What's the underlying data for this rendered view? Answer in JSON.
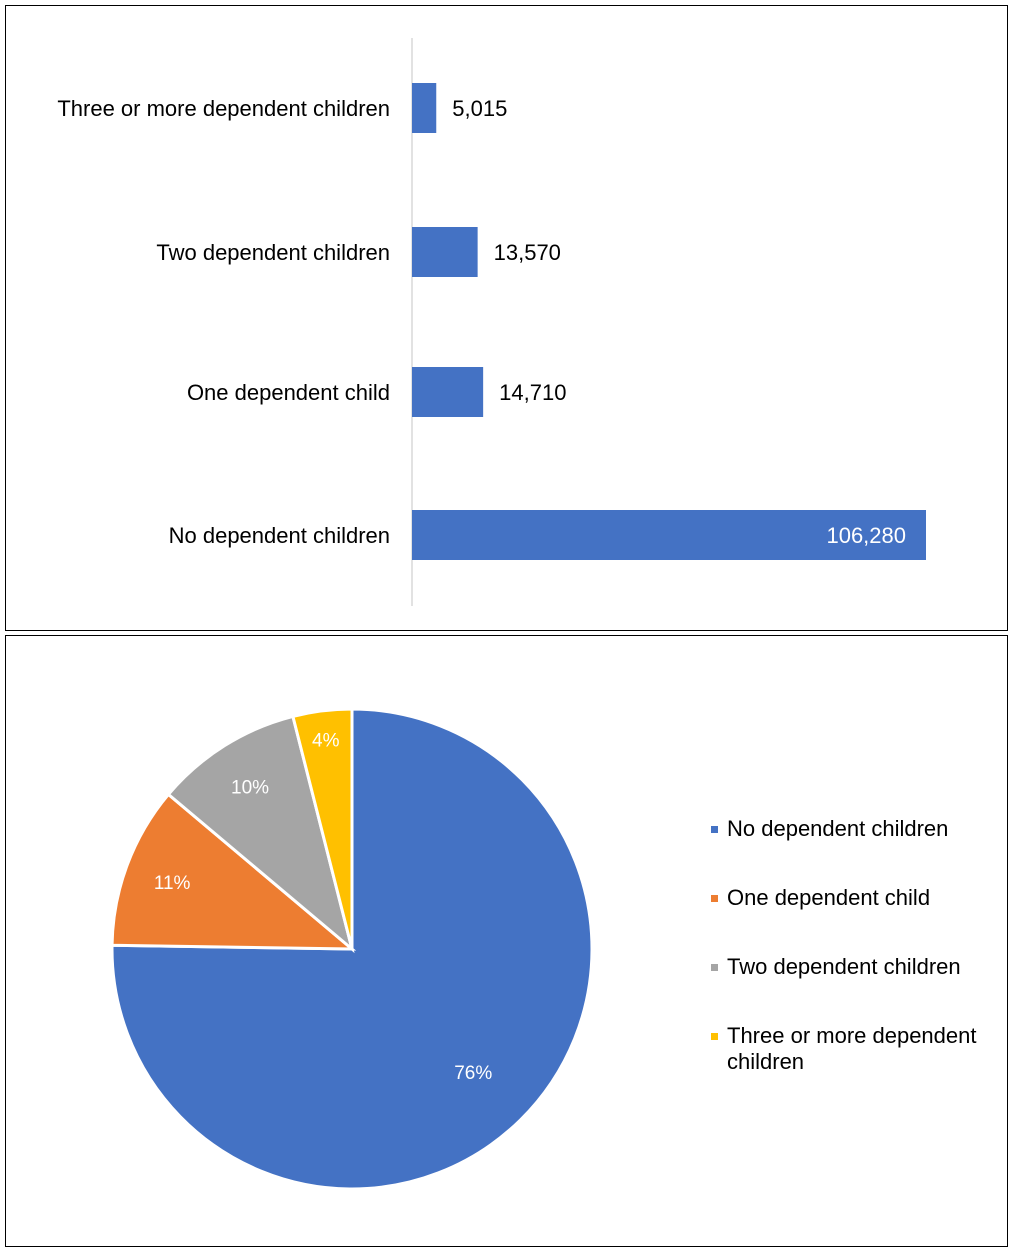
{
  "colors": {
    "bar": "#4472C4",
    "axis": "#D9D9D9",
    "slice_border": "#FFFFFF"
  },
  "chart_data": [
    {
      "type": "bar",
      "orientation": "horizontal",
      "categories": [
        "No dependent children",
        "One dependent child",
        "Two dependent children",
        "Three or more dependent children"
      ],
      "values": [
        106280,
        14710,
        13570,
        5015
      ],
      "data_labels": [
        "106,280",
        "14,710",
        "13,570",
        "5,015"
      ],
      "title": "",
      "xlabel": "",
      "ylabel": "",
      "xlim": [
        0,
        106280
      ],
      "grid": false,
      "legend": "none"
    },
    {
      "type": "pie",
      "categories": [
        "No dependent children",
        "One dependent child",
        "Two dependent children",
        "Three or more dependent children"
      ],
      "values": [
        76,
        11,
        10,
        4
      ],
      "data_labels": [
        "76%",
        "11%",
        "10%",
        "4%"
      ],
      "colors": [
        "#4472C4",
        "#ED7D31",
        "#A5A5A5",
        "#FFC000"
      ],
      "legend_labels": [
        "No dependent children",
        "One dependent child",
        "Two dependent children",
        "Three or more dependent children"
      ],
      "legend": "right",
      "title": ""
    }
  ]
}
